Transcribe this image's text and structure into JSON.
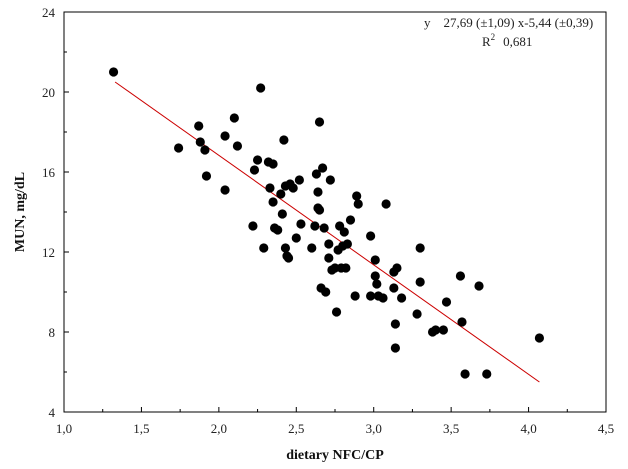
{
  "chart_data": {
    "type": "scatter",
    "xlabel": "dietary NFC/CP",
    "ylabel": "MUN, mg/dL",
    "xlim": [
      1.0,
      4.5
    ],
    "ylim": [
      4,
      24
    ],
    "xticks": [
      "1,0",
      "1,5",
      "2,0",
      "2,5",
      "3,0",
      "3,5",
      "4,0",
      "4,5"
    ],
    "yticks": [
      "4",
      "8",
      "12",
      "16",
      "20",
      "24"
    ],
    "xtick_values": [
      1.0,
      1.5,
      2.0,
      2.5,
      3.0,
      3.5,
      4.0,
      4.5
    ],
    "ytick_values": [
      4,
      8,
      12,
      16,
      20,
      24
    ],
    "grid": false,
    "legend": "none",
    "equation_line1": "y    27,69 (±1,09) x-5,44 (±0,39)",
    "equation_r_label": "R",
    "equation_r_exp": "2",
    "equation_r_value": "0,681",
    "fit_line": {
      "x": [
        1.33,
        4.07
      ],
      "y": [
        20.5,
        5.5
      ],
      "color": "#cc0000"
    },
    "point_color": "#000000",
    "points": [
      [
        1.32,
        21.0
      ],
      [
        1.74,
        17.2
      ],
      [
        1.87,
        18.3
      ],
      [
        1.88,
        17.5
      ],
      [
        1.91,
        17.1
      ],
      [
        1.92,
        15.8
      ],
      [
        2.04,
        17.8
      ],
      [
        2.04,
        15.1
      ],
      [
        2.1,
        18.7
      ],
      [
        2.12,
        17.3
      ],
      [
        2.22,
        13.3
      ],
      [
        2.23,
        16.1
      ],
      [
        2.25,
        16.6
      ],
      [
        2.27,
        20.2
      ],
      [
        2.29,
        12.2
      ],
      [
        2.32,
        16.5
      ],
      [
        2.33,
        15.2
      ],
      [
        2.35,
        16.4
      ],
      [
        2.35,
        14.5
      ],
      [
        2.36,
        13.2
      ],
      [
        2.38,
        13.1
      ],
      [
        2.4,
        14.9
      ],
      [
        2.41,
        13.9
      ],
      [
        2.42,
        17.6
      ],
      [
        2.43,
        15.3
      ],
      [
        2.43,
        12.2
      ],
      [
        2.44,
        11.8
      ],
      [
        2.45,
        11.7
      ],
      [
        2.46,
        15.4
      ],
      [
        2.48,
        15.2
      ],
      [
        2.5,
        12.7
      ],
      [
        2.52,
        15.6
      ],
      [
        2.53,
        13.4
      ],
      [
        2.6,
        12.2
      ],
      [
        2.62,
        13.3
      ],
      [
        2.63,
        15.9
      ],
      [
        2.64,
        15.0
      ],
      [
        2.64,
        14.2
      ],
      [
        2.65,
        14.1
      ],
      [
        2.65,
        18.5
      ],
      [
        2.66,
        10.2
      ],
      [
        2.67,
        16.2
      ],
      [
        2.68,
        13.2
      ],
      [
        2.69,
        10.0
      ],
      [
        2.71,
        12.4
      ],
      [
        2.71,
        11.7
      ],
      [
        2.72,
        15.6
      ],
      [
        2.73,
        11.1
      ],
      [
        2.75,
        11.2
      ],
      [
        2.76,
        9.0
      ],
      [
        2.77,
        12.1
      ],
      [
        2.78,
        13.3
      ],
      [
        2.79,
        11.2
      ],
      [
        2.8,
        12.3
      ],
      [
        2.81,
        13.0
      ],
      [
        2.82,
        11.2
      ],
      [
        2.83,
        12.4
      ],
      [
        2.85,
        13.6
      ],
      [
        2.88,
        9.8
      ],
      [
        2.89,
        14.8
      ],
      [
        2.9,
        14.4
      ],
      [
        2.98,
        12.8
      ],
      [
        2.98,
        9.8
      ],
      [
        3.01,
        11.6
      ],
      [
        3.01,
        10.8
      ],
      [
        3.02,
        10.4
      ],
      [
        3.03,
        9.8
      ],
      [
        3.06,
        9.7
      ],
      [
        3.08,
        14.4
      ],
      [
        3.13,
        11.0
      ],
      [
        3.13,
        10.2
      ],
      [
        3.14,
        8.4
      ],
      [
        3.14,
        7.2
      ],
      [
        3.15,
        11.2
      ],
      [
        3.18,
        9.7
      ],
      [
        3.28,
        8.9
      ],
      [
        3.3,
        12.2
      ],
      [
        3.3,
        10.5
      ],
      [
        3.38,
        8.0
      ],
      [
        3.4,
        8.1
      ],
      [
        3.45,
        8.1
      ],
      [
        3.47,
        9.5
      ],
      [
        3.56,
        10.8
      ],
      [
        3.57,
        8.5
      ],
      [
        3.59,
        5.9
      ],
      [
        3.68,
        10.3
      ],
      [
        3.73,
        5.9
      ],
      [
        4.07,
        7.7
      ]
    ]
  }
}
